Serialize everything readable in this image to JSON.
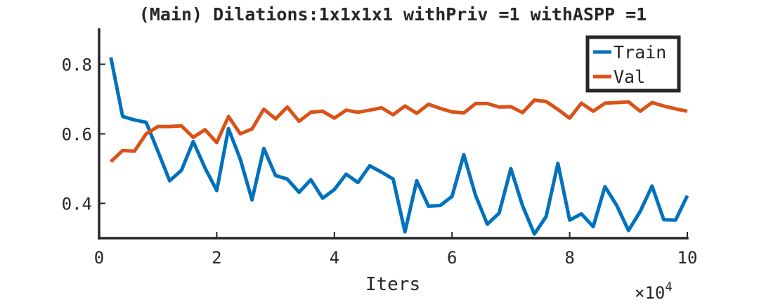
{
  "chart_data": {
    "type": "line",
    "title": "(Main) Dilations:1x1x1x1 withPriv =1 withASPP =1",
    "xlabel": "Iters",
    "ylabel": "",
    "x_exponent_label": "×10",
    "x_exponent_power": "4",
    "xlim": [
      0,
      10
    ],
    "ylim": [
      0.3,
      0.9
    ],
    "xticks": [
      0,
      2,
      4,
      6,
      8,
      10
    ],
    "xtick_labels": [
      "0",
      "2",
      "4",
      "6",
      "8",
      "10"
    ],
    "yticks": [
      0.4,
      0.6,
      0.8
    ],
    "ytick_labels": [
      "0.4",
      "0.6",
      "0.8"
    ],
    "grid": false,
    "legend_position": "top-right",
    "x": [
      0.2,
      0.4,
      0.6,
      0.8,
      1.0,
      1.2,
      1.4,
      1.6,
      1.8,
      2.0,
      2.2,
      2.4,
      2.6,
      2.8,
      3.0,
      3.2,
      3.4,
      3.6,
      3.8,
      4.0,
      4.2,
      4.4,
      4.6,
      4.8,
      5.0,
      5.2,
      5.4,
      5.6,
      5.8,
      6.0,
      6.2,
      6.4,
      6.6,
      6.8,
      7.0,
      7.2,
      7.4,
      7.6,
      7.8,
      8.0,
      8.2,
      8.4,
      8.6,
      8.8,
      9.0,
      9.2,
      9.4,
      9.6,
      9.8,
      10.0
    ],
    "series": [
      {
        "name": "Train",
        "color": "#0072BD",
        "values": [
          0.82,
          0.65,
          0.64,
          0.633,
          0.55,
          0.465,
          0.495,
          0.578,
          0.502,
          0.437,
          0.615,
          0.527,
          0.41,
          0.558,
          0.48,
          0.47,
          0.432,
          0.468,
          0.415,
          0.44,
          0.484,
          0.46,
          0.508,
          0.49,
          0.47,
          0.318,
          0.465,
          0.392,
          0.394,
          0.42,
          0.54,
          0.423,
          0.34,
          0.372,
          0.5,
          0.393,
          0.312,
          0.362,
          0.515,
          0.352,
          0.37,
          0.333,
          0.448,
          0.394,
          0.322,
          0.377,
          0.45,
          0.353,
          0.352,
          0.422
        ]
      },
      {
        "name": "Val",
        "color": "#D95319",
        "values": [
          0.52,
          0.552,
          0.55,
          0.6,
          0.621,
          0.621,
          0.623,
          0.59,
          0.612,
          0.575,
          0.65,
          0.6,
          0.614,
          0.671,
          0.643,
          0.677,
          0.636,
          0.662,
          0.665,
          0.645,
          0.668,
          0.662,
          0.668,
          0.675,
          0.655,
          0.68,
          0.659,
          0.685,
          0.673,
          0.663,
          0.66,
          0.687,
          0.687,
          0.677,
          0.678,
          0.661,
          0.697,
          0.693,
          0.67,
          0.645,
          0.688,
          0.665,
          0.688,
          0.69,
          0.692,
          0.665,
          0.69,
          0.68,
          0.672,
          0.665
        ]
      }
    ]
  }
}
